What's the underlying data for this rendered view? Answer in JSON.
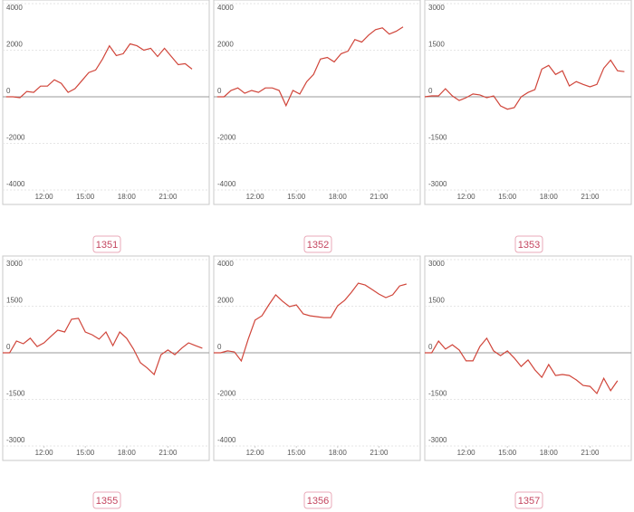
{
  "chart_data": [
    {
      "type": "line",
      "title": "1351",
      "color": "#d0453a",
      "grid": true,
      "x": [
        9.25,
        9.75,
        10.25,
        10.75,
        11.25,
        11.75,
        12.25,
        12.75,
        13.25,
        13.75,
        14.25,
        14.75,
        15.25,
        15.75,
        16.25,
        16.75,
        17.25,
        17.75,
        18.25,
        18.75,
        19.25,
        19.75,
        20.25,
        20.75,
        21.25,
        21.75,
        22.25,
        22.75
      ],
      "values": [
        0,
        0,
        -40,
        230,
        190,
        460,
        460,
        730,
        580,
        190,
        350,
        690,
        1040,
        1150,
        1620,
        2190,
        1770,
        1850,
        2270,
        2190,
        2000,
        2080,
        1730,
        2080,
        1730,
        1380,
        1420,
        1190
      ],
      "xlim": [
        9,
        24
      ],
      "xticks": [
        {
          "value": 12,
          "label": "12:00"
        },
        {
          "value": 15,
          "label": "15:00"
        },
        {
          "value": 18,
          "label": "18:00"
        },
        {
          "value": 21,
          "label": "21:00"
        }
      ],
      "ylim": [
        -4000,
        4000
      ],
      "yticks": [
        4000,
        2000,
        0,
        -2000,
        -4000
      ]
    },
    {
      "type": "line",
      "title": "1352",
      "color": "#d0453a",
      "grid": true,
      "x": [
        9.25,
        9.75,
        10.25,
        10.75,
        11.25,
        11.75,
        12.25,
        12.75,
        13.25,
        13.75,
        14.25,
        14.75,
        15.25,
        15.75,
        16.25,
        16.75,
        17.25,
        17.75,
        18.25,
        18.75,
        19.25,
        19.75,
        20.25,
        20.75,
        21.25,
        21.75,
        22.25,
        22.75
      ],
      "values": [
        0,
        0,
        270,
        380,
        150,
        270,
        190,
        380,
        380,
        270,
        -380,
        270,
        120,
        650,
        960,
        1620,
        1690,
        1500,
        1850,
        1960,
        2460,
        2350,
        2650,
        2880,
        2960,
        2690,
        2810,
        3000
      ],
      "xlim": [
        9,
        24
      ],
      "xticks": [
        {
          "value": 12,
          "label": "12:00"
        },
        {
          "value": 15,
          "label": "15:00"
        },
        {
          "value": 18,
          "label": "18:00"
        },
        {
          "value": 21,
          "label": "21:00"
        }
      ],
      "ylim": [
        -4000,
        4000
      ],
      "yticks": [
        4000,
        2000,
        0,
        -2000,
        -4000
      ]
    },
    {
      "type": "line",
      "title": "1353",
      "color": "#d0453a",
      "grid": true,
      "x": [
        9,
        9.5,
        10,
        10.5,
        11,
        11.5,
        12,
        12.5,
        13,
        13.5,
        14,
        14.5,
        15,
        15.5,
        16,
        16.5,
        17,
        17.5,
        18,
        18.5,
        19,
        19.5,
        20,
        20.5,
        21,
        21.5,
        22,
        22.5,
        23,
        23.5
      ],
      "values": [
        0,
        30,
        30,
        260,
        30,
        -120,
        -30,
        90,
        60,
        -30,
        30,
        -290,
        -400,
        -350,
        0,
        140,
        230,
        890,
        1010,
        720,
        840,
        350,
        490,
        400,
        320,
        400,
        920,
        1180,
        840,
        810
      ],
      "xlim": [
        9,
        24
      ],
      "xticks": [
        {
          "value": 12,
          "label": "12:00"
        },
        {
          "value": 15,
          "label": "15:00"
        },
        {
          "value": 18,
          "label": "18:00"
        },
        {
          "value": 21,
          "label": "21:00"
        }
      ],
      "ylim": [
        -3000,
        3000
      ],
      "yticks": [
        3000,
        1500,
        0,
        -1500,
        -3000
      ]
    },
    {
      "type": "line",
      "title": "1355",
      "color": "#d0453a",
      "grid": true,
      "x": [
        9,
        9.5,
        10,
        10.5,
        11,
        11.5,
        12,
        12.5,
        13,
        13.5,
        14,
        14.5,
        15,
        15.5,
        16,
        16.5,
        17,
        17.5,
        18,
        18.5,
        19,
        19.5,
        20,
        20.5,
        21,
        21.5,
        22,
        22.5,
        23,
        23.5
      ],
      "values": [
        0,
        0,
        380,
        290,
        470,
        200,
        320,
        530,
        730,
        670,
        1080,
        1110,
        670,
        580,
        440,
        670,
        230,
        670,
        470,
        120,
        -320,
        -490,
        -700,
        -60,
        90,
        -60,
        150,
        320,
        230,
        150
      ],
      "xlim": [
        9,
        24
      ],
      "xticks": [
        {
          "value": 12,
          "label": "12:00"
        },
        {
          "value": 15,
          "label": "15:00"
        },
        {
          "value": 18,
          "label": "18:00"
        },
        {
          "value": 21,
          "label": "21:00"
        }
      ],
      "ylim": [
        -3000,
        3000
      ],
      "yticks": [
        3000,
        1500,
        0,
        -1500,
        -3000
      ]
    },
    {
      "type": "line",
      "title": "1356",
      "color": "#d0453a",
      "grid": true,
      "x": [
        9,
        9.5,
        10,
        10.5,
        11,
        11.5,
        12,
        12.5,
        13,
        13.5,
        14,
        14.5,
        15,
        15.5,
        16,
        16.5,
        17,
        17.5,
        18,
        18.5,
        19,
        19.5,
        20,
        20.5,
        21,
        21.5,
        22,
        22.5,
        23
      ],
      "values": [
        0,
        0,
        80,
        40,
        -350,
        580,
        1400,
        1590,
        2060,
        2490,
        2210,
        1980,
        2060,
        1670,
        1590,
        1550,
        1510,
        1510,
        2020,
        2250,
        2600,
        2990,
        2910,
        2720,
        2520,
        2370,
        2490,
        2870,
        2950
      ],
      "xlim": [
        9,
        24
      ],
      "xticks": [
        {
          "value": 12,
          "label": "12:00"
        },
        {
          "value": 15,
          "label": "15:00"
        },
        {
          "value": 18,
          "label": "18:00"
        },
        {
          "value": 21,
          "label": "21:00"
        }
      ],
      "ylim": [
        -4000,
        4000
      ],
      "yticks": [
        4000,
        2000,
        0,
        -2000,
        -4000
      ]
    },
    {
      "type": "line",
      "title": "1357",
      "color": "#d0453a",
      "grid": true,
      "x": [
        9,
        9.5,
        10,
        10.5,
        11,
        11.5,
        12,
        12.5,
        13,
        13.5,
        14,
        14.5,
        15,
        15.5,
        16,
        16.5,
        17,
        17.5,
        18,
        18.5,
        19,
        19.5,
        20,
        20.5,
        21,
        21.5,
        22,
        22.5,
        23
      ],
      "values": [
        0,
        0,
        380,
        120,
        260,
        90,
        -260,
        -260,
        200,
        470,
        60,
        -90,
        60,
        -170,
        -440,
        -230,
        -550,
        -790,
        -380,
        -730,
        -700,
        -730,
        -870,
        -1050,
        -1080,
        -1310,
        -820,
        -1220,
        -900
      ],
      "xlim": [
        9,
        24
      ],
      "xticks": [
        {
          "value": 12,
          "label": "12:00"
        },
        {
          "value": 15,
          "label": "15:00"
        },
        {
          "value": 18,
          "label": "18:00"
        },
        {
          "value": 21,
          "label": "21:00"
        }
      ],
      "ylim": [
        -3000,
        3000
      ],
      "yticks": [
        3000,
        1500,
        0,
        -1500,
        -3000
      ]
    }
  ]
}
